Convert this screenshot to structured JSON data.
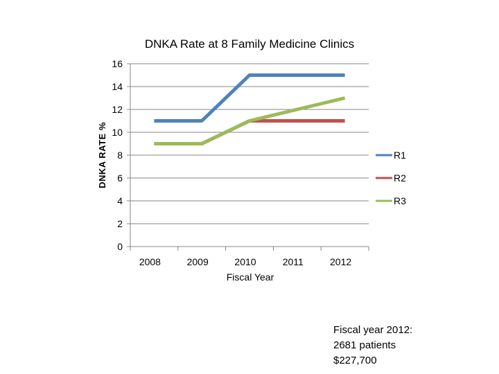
{
  "chart_data": {
    "type": "line",
    "title": "DNKA Rate at 8 Family Medicine  Clinics",
    "xlabel": "Fiscal Year",
    "ylabel": "DNKA  RATE %",
    "categories": [
      "2008",
      "2009",
      "2010",
      "2011",
      "2012"
    ],
    "ylim": [
      0,
      16
    ],
    "yticks": [
      0,
      2,
      4,
      6,
      8,
      10,
      12,
      14,
      16
    ],
    "grid": true,
    "legend_position": "right",
    "series": [
      {
        "name": "R1",
        "color": "#4F81BD",
        "values": [
          11,
          11,
          15,
          15,
          15
        ]
      },
      {
        "name": "R2",
        "color": "#C0504D",
        "values": [
          9,
          9,
          11,
          11,
          11
        ]
      },
      {
        "name": "R3",
        "color": "#9BBB59",
        "values": [
          9,
          9,
          11,
          12,
          13
        ]
      }
    ]
  },
  "note": {
    "line1": "Fiscal year 2012:",
    "line2": "2681 patients",
    "line3": "$227,700"
  }
}
